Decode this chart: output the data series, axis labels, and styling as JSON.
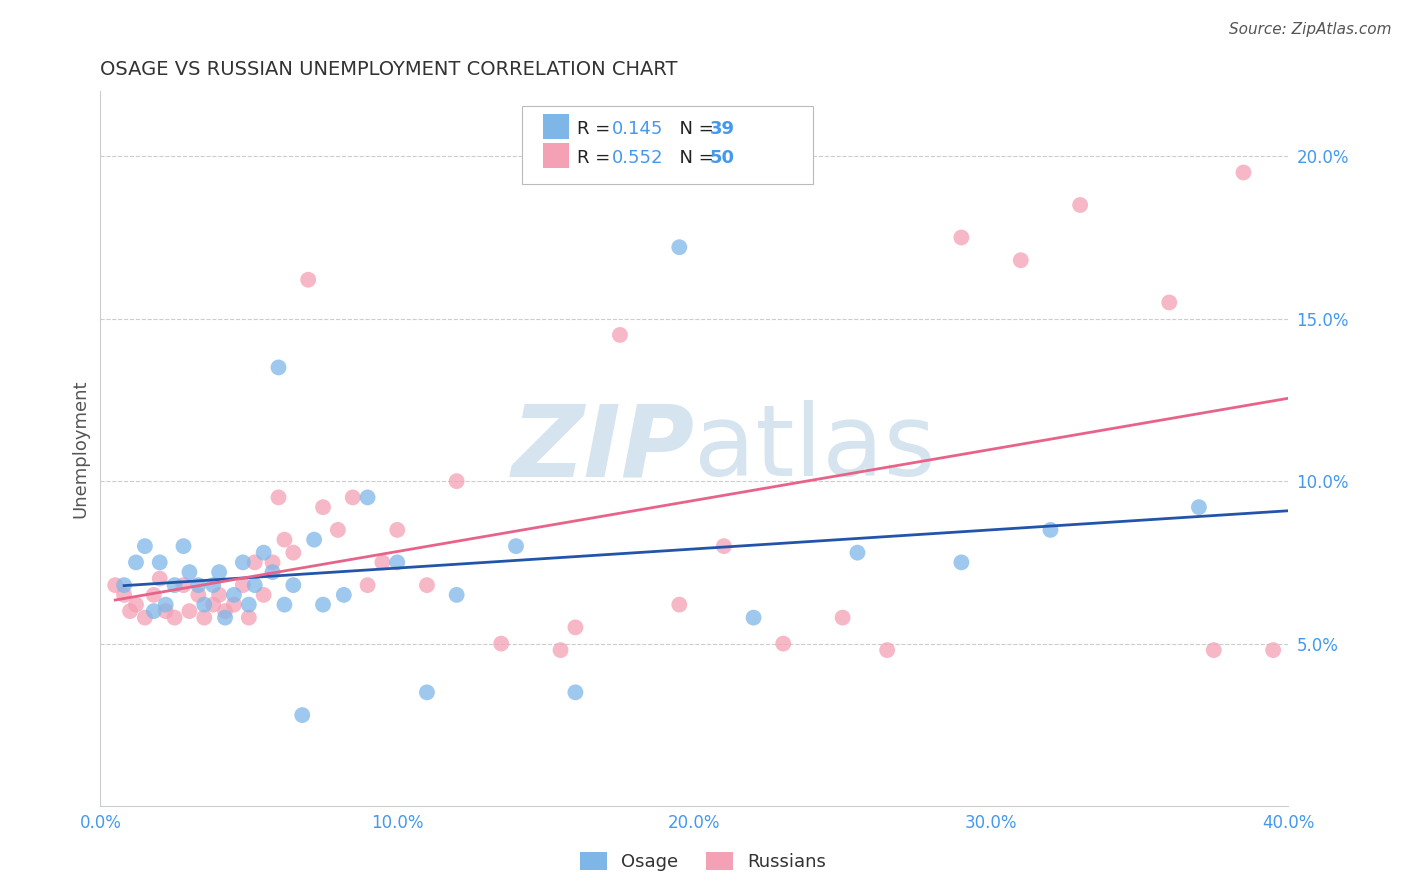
{
  "title": "OSAGE VS RUSSIAN UNEMPLOYMENT CORRELATION CHART",
  "source": "Source: ZipAtlas.com",
  "ylabel": "Unemployment",
  "xlim": [
    0.0,
    0.4
  ],
  "ylim": [
    0.0,
    0.22
  ],
  "xtick_vals": [
    0.0,
    0.1,
    0.2,
    0.3,
    0.4
  ],
  "xtick_labels": [
    "0.0%",
    "10.0%",
    "20.0%",
    "30.0%",
    "40.0%"
  ],
  "ytick_vals": [
    0.05,
    0.1,
    0.15,
    0.2
  ],
  "ytick_labels": [
    "5.0%",
    "10.0%",
    "15.0%",
    "20.0%"
  ],
  "osage_color": "#7EB6E8",
  "russian_color": "#F4A0B5",
  "osage_line_color": "#2255AA",
  "russian_line_color": "#E8638A",
  "legend_R_osage": "0.145",
  "legend_N_osage": "39",
  "legend_R_russian": "0.552",
  "legend_N_russian": "50",
  "osage_x": [
    0.008,
    0.012,
    0.015,
    0.018,
    0.02,
    0.022,
    0.025,
    0.028,
    0.03,
    0.033,
    0.035,
    0.038,
    0.04,
    0.042,
    0.045,
    0.048,
    0.05,
    0.052,
    0.055,
    0.058,
    0.06,
    0.062,
    0.065,
    0.068,
    0.072,
    0.075,
    0.082,
    0.09,
    0.1,
    0.11,
    0.12,
    0.14,
    0.16,
    0.195,
    0.22,
    0.255,
    0.29,
    0.32,
    0.37
  ],
  "osage_y": [
    0.068,
    0.075,
    0.08,
    0.06,
    0.075,
    0.062,
    0.068,
    0.08,
    0.072,
    0.068,
    0.062,
    0.068,
    0.072,
    0.058,
    0.065,
    0.075,
    0.062,
    0.068,
    0.078,
    0.072,
    0.135,
    0.062,
    0.068,
    0.028,
    0.082,
    0.062,
    0.065,
    0.095,
    0.075,
    0.035,
    0.065,
    0.08,
    0.035,
    0.172,
    0.058,
    0.078,
    0.075,
    0.085,
    0.092
  ],
  "russian_x": [
    0.005,
    0.008,
    0.01,
    0.012,
    0.015,
    0.018,
    0.02,
    0.022,
    0.025,
    0.028,
    0.03,
    0.033,
    0.035,
    0.038,
    0.04,
    0.042,
    0.045,
    0.048,
    0.05,
    0.052,
    0.055,
    0.058,
    0.06,
    0.062,
    0.065,
    0.07,
    0.075,
    0.08,
    0.085,
    0.09,
    0.095,
    0.1,
    0.11,
    0.12,
    0.135,
    0.155,
    0.16,
    0.175,
    0.195,
    0.21,
    0.23,
    0.25,
    0.265,
    0.29,
    0.31,
    0.33,
    0.36,
    0.375,
    0.385,
    0.395
  ],
  "russian_y": [
    0.068,
    0.065,
    0.06,
    0.062,
    0.058,
    0.065,
    0.07,
    0.06,
    0.058,
    0.068,
    0.06,
    0.065,
    0.058,
    0.062,
    0.065,
    0.06,
    0.062,
    0.068,
    0.058,
    0.075,
    0.065,
    0.075,
    0.095,
    0.082,
    0.078,
    0.162,
    0.092,
    0.085,
    0.095,
    0.068,
    0.075,
    0.085,
    0.068,
    0.1,
    0.05,
    0.048,
    0.055,
    0.145,
    0.062,
    0.08,
    0.05,
    0.058,
    0.048,
    0.175,
    0.168,
    0.185,
    0.155,
    0.048,
    0.195,
    0.048
  ],
  "background_color": "#FFFFFF",
  "watermark_color": "#D5E4EF",
  "grid_color": "#CCCCCC",
  "tick_color": "#4499EE",
  "label_color": "#555555"
}
